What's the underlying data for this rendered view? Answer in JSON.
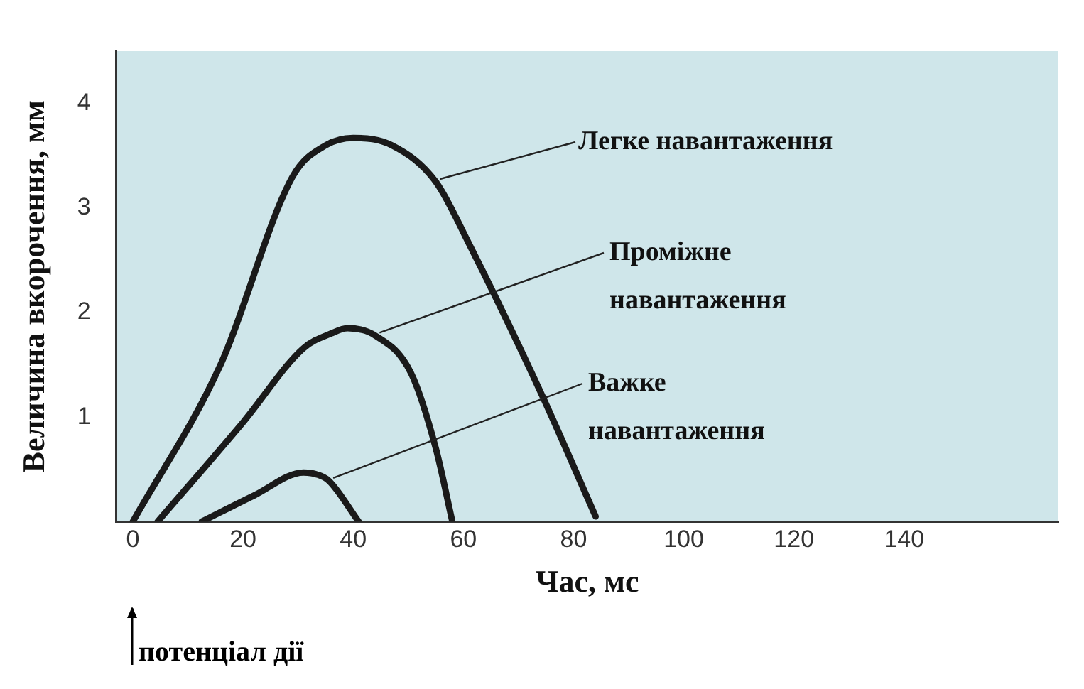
{
  "chart_data": {
    "type": "line",
    "xlabel": "Час, мс",
    "ylabel": "Величина вкорочення, мм",
    "xlim": [
      -3,
      168
    ],
    "ylim": [
      0,
      4.5
    ],
    "xticks": [
      0,
      20,
      40,
      60,
      80,
      100,
      120,
      140
    ],
    "yticks": [
      1,
      2,
      3,
      4
    ],
    "grid": false,
    "legend": false,
    "marker": "none",
    "line_style": "solid",
    "series": [
      {
        "name": "Легке навантаження",
        "color": "#1a1a1a",
        "x": [
          0,
          16,
          29,
          35,
          40,
          47,
          55,
          61,
          74,
          84
        ],
        "values": [
          0,
          1.51,
          3.3,
          3.6,
          3.67,
          3.6,
          3.25,
          2.66,
          1.24,
          0.05
        ]
      },
      {
        "name": "Проміжне навантаження",
        "color": "#1a1a1a",
        "x": [
          4.5,
          20,
          31,
          36,
          39,
          44,
          50.5,
          55,
          58
        ],
        "values": [
          0,
          0.95,
          1.66,
          1.8,
          1.85,
          1.78,
          1.42,
          0.7,
          0
        ]
      },
      {
        "name": "Важке навантаження",
        "color": "#1a1a1a",
        "x": [
          12.5,
          22,
          31,
          33.5,
          35.6,
          41
        ],
        "values": [
          0,
          0.25,
          0.47,
          0.45,
          0.39,
          0
        ]
      }
    ],
    "annotations": [
      "потенціал дії"
    ]
  }
}
